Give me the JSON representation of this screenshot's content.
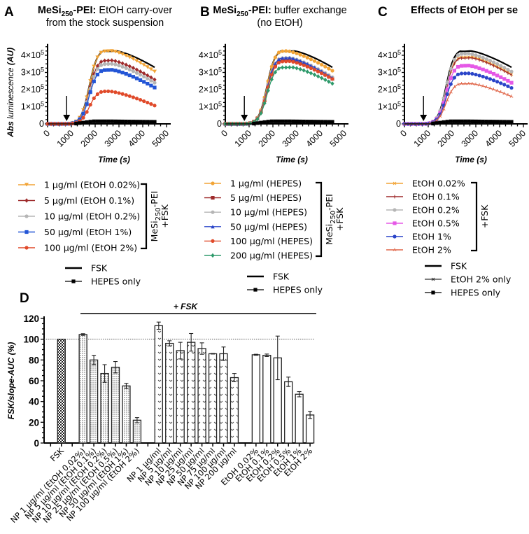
{
  "colors": {
    "orange": "#F2A436",
    "darkred": "#9E2A2B",
    "gray": "#B5B5B5",
    "blue": "#2355D6",
    "red": "#E04A2A",
    "green": "#2E9A6B",
    "magenta": "#E558E6",
    "navy": "#2A44C8",
    "salmon": "#E0674A",
    "black": "#000000"
  },
  "panels": [
    {
      "letter": "A",
      "title_bold": "MeSi",
      "title_sub": "250",
      "title_bold2": "-PEI:",
      "title_rest": " EtOH carry-over",
      "title_line2": "from the stock suspension"
    },
    {
      "letter": "B",
      "title_bold": "MeSi",
      "title_sub": "250",
      "title_bold2": "-PEI:",
      "title_rest": " buffer exchange",
      "title_line2": "(no EtOH)"
    },
    {
      "letter": "C",
      "title_bold": "Effects of EtOH per se",
      "title_sub": "",
      "title_bold2": "",
      "title_rest": "",
      "title_line2": ""
    }
  ],
  "legends": {
    "A": {
      "items": [
        "1 µg/ml (EtOH 0.02%)",
        "5 µg/ml (EtOH 0.1%)",
        "10 µg/ml (EtOH 0.2%)",
        "50 µg/ml (EtOH 1%)",
        "100 µg/ml (EtOH 2%)"
      ],
      "bracket_label_1": "MeSi",
      "bracket_label_sub": "250",
      "bracket_label_2": "-PEI",
      "bracket_label_3": "+FSK",
      "extra": [
        "FSK",
        "HEPES only"
      ]
    },
    "B": {
      "items": [
        "1 µg/ml (HEPES)",
        "5 µg/ml (HEPES)",
        "10 µg/ml (HEPES)",
        "50 µg/ml (HEPES)",
        "100 µg/ml (HEPES)",
        "200 µg/ml (HEPES)"
      ],
      "bracket_label_1": "MeSi",
      "bracket_label_sub": "250",
      "bracket_label_2": "-PEI",
      "bracket_label_3": "+FSK",
      "extra": [
        "FSK",
        "HEPES only"
      ]
    },
    "C": {
      "items": [
        "EtOH 0.02%",
        "EtOH 0.1%",
        "EtOH 0.2%",
        "EtOH 0.5%",
        "EtOH 1%",
        "EtOH 2%"
      ],
      "bracket_label_3": "+FSK",
      "extra": [
        "FSK",
        "EtOH 2% only",
        "HEPES only"
      ]
    }
  },
  "chart_data": [
    {
      "type": "line",
      "panel": "A",
      "title": "MeSi250-PEI: EtOH carry-over from the stock suspension",
      "xlabel": "Time (s)",
      "ylabel": "Abs luminescence (AU)",
      "xlim": [
        0,
        5000
      ],
      "ylim": [
        0,
        450000
      ],
      "xticks": [
        "0",
        "1000",
        "2000",
        "3000",
        "4000",
        "5000"
      ],
      "yticks": [
        "0",
        "1×10⁵",
        "2×10⁵",
        "3×10⁵",
        "4×10⁵"
      ],
      "annotation": "arrow at ~800 s (addition)",
      "series": [
        {
          "name": "FSK",
          "color": "#000000",
          "marker": "none",
          "peak": 425000,
          "peak_t": 2900,
          "end": 330000
        },
        {
          "name": "1 µg/ml (EtOH 0.02%)",
          "color": "#F2A436",
          "marker": "triangle-down",
          "peak": 425000,
          "peak_t": 2700,
          "end": 305000
        },
        {
          "name": "5 µg/ml (EtOH 0.1%)",
          "color": "#9E2A2B",
          "marker": "diamond",
          "peak": 370000,
          "peak_t": 2700,
          "end": 258000
        },
        {
          "name": "10 µg/ml (EtOH 0.2%)",
          "color": "#B5B5B5",
          "marker": "circle",
          "peak": 350000,
          "peak_t": 2700,
          "end": 240000
        },
        {
          "name": "50 µg/ml (EtOH 1%)",
          "color": "#2355D6",
          "marker": "square",
          "peak": 315000,
          "peak_t": 2700,
          "end": 212000
        },
        {
          "name": "100 µg/ml (EtOH 2%)",
          "color": "#E04A2A",
          "marker": "circle",
          "peak": 190000,
          "peak_t": 2600,
          "end": 107000
        },
        {
          "name": "HEPES only",
          "color": "#000000",
          "marker": "square",
          "peak": 15000,
          "peak_t": 2700,
          "end": 12000,
          "flat": true
        }
      ]
    },
    {
      "type": "line",
      "panel": "B",
      "title": "MeSi250-PEI: buffer exchange (no EtOH)",
      "xlabel": "Time (s)",
      "ylabel": "",
      "xlim": [
        0,
        5000
      ],
      "ylim": [
        0,
        450000
      ],
      "xticks": [
        "0",
        "1000",
        "2000",
        "3000",
        "4000",
        "5000"
      ],
      "yticks": [
        "0",
        "1×10⁵",
        "2×10⁵",
        "3×10⁵",
        "4×10⁵"
      ],
      "series": [
        {
          "name": "FSK",
          "color": "#000000",
          "marker": "none",
          "peak": 425000,
          "peak_t": 2900,
          "end": 330000
        },
        {
          "name": "1 µg/ml (HEPES)",
          "color": "#F2A436",
          "marker": "circle",
          "peak": 425000,
          "peak_t": 2600,
          "end": 310000
        },
        {
          "name": "5 µg/ml (HEPES)",
          "color": "#9E2A2B",
          "marker": "square",
          "peak": 375000,
          "peak_t": 2700,
          "end": 263000
        },
        {
          "name": "10 µg/ml (HEPES)",
          "color": "#B5B5B5",
          "marker": "circle",
          "peak": 385000,
          "peak_t": 2700,
          "end": 272000
        },
        {
          "name": "50 µg/ml (HEPES)",
          "color": "#2A44C8",
          "marker": "triangle-up",
          "peak": 385000,
          "peak_t": 2700,
          "end": 268000
        },
        {
          "name": "100 µg/ml (HEPES)",
          "color": "#E04A2A",
          "marker": "circle",
          "peak": 365000,
          "peak_t": 2700,
          "end": 262000
        },
        {
          "name": "200 µg/ml (HEPES)",
          "color": "#2E9A6B",
          "marker": "diamond",
          "peak": 330000,
          "peak_t": 2800,
          "end": 235000
        },
        {
          "name": "HEPES only",
          "color": "#000000",
          "marker": "square",
          "peak": 15000,
          "peak_t": 2700,
          "end": 12000,
          "flat": true
        }
      ]
    },
    {
      "type": "line",
      "panel": "C",
      "title": "Effects of EtOH per se",
      "xlabel": "Time (s)",
      "ylabel": "",
      "xlim": [
        0,
        5000
      ],
      "ylim": [
        0,
        450000
      ],
      "xticks": [
        "0",
        "1000",
        "2000",
        "3000",
        "4000",
        "5000"
      ],
      "yticks": [
        "0",
        "1×10⁵",
        "2×10⁵",
        "3×10⁵",
        "4×10⁵"
      ],
      "series": [
        {
          "name": "FSK",
          "color": "#000000",
          "marker": "none",
          "peak": 425000,
          "peak_t": 2800,
          "end": 330000
        },
        {
          "name": "EtOH 0.02%",
          "color": "#F2A436",
          "marker": "x",
          "peak": 390000,
          "peak_t": 2800,
          "end": 290000
        },
        {
          "name": "EtOH 0.1%",
          "color": "#9E2A2B",
          "marker": "plus",
          "peak": 385000,
          "peak_t": 2800,
          "end": 285000
        },
        {
          "name": "EtOH 0.2%",
          "color": "#B5B5B5",
          "marker": "circle",
          "peak": 410000,
          "peak_t": 2700,
          "end": 305000
        },
        {
          "name": "EtOH 0.5%",
          "color": "#E558E6",
          "marker": "square",
          "peak": 340000,
          "peak_t": 2700,
          "end": 240000
        },
        {
          "name": "EtOH 1%",
          "color": "#2A44C8",
          "marker": "circle",
          "peak": 295000,
          "peak_t": 2700,
          "end": 210000
        },
        {
          "name": "EtOH 2%",
          "color": "#E0674A",
          "marker": "tri",
          "peak": 235000,
          "peak_t": 2800,
          "end": 160000
        },
        {
          "name": "EtOH 2% only",
          "color": "#333333",
          "marker": "x",
          "peak": 12000,
          "peak_t": 2700,
          "end": 10000,
          "flat": true
        },
        {
          "name": "HEPES only",
          "color": "#000000",
          "marker": "square",
          "peak": 15000,
          "peak_t": 2700,
          "end": 12000,
          "flat": true
        }
      ]
    },
    {
      "type": "bar",
      "panel": "D",
      "title": "",
      "group_label": "+ FSK",
      "ylabel": "FSK/slope-AUC (%)",
      "ylim": [
        0,
        120
      ],
      "yticks": [
        "0",
        "20",
        "40",
        "60",
        "80",
        "100",
        "120"
      ],
      "reference_line": 100,
      "categories": [
        "FSK",
        "NP 1 µg/ml (EtOH 0.02%)",
        "NP 5 µg/ml (EtOH 0.1%)",
        "NP 10 µg/ml (EtOH 0.2%)",
        "NP 25 µg/ml (EtOH 0.5%)",
        "NP 50 µg/ml (EtOH 1%)",
        "NP 100 µg/ml (EtOH 2%)",
        "NP 1 µg/ml",
        "NP 5 µg/ml",
        "NP 10 µg/ml",
        "NP 25 µg/ml",
        "NP 50 µg/ml",
        "NP 75 µg/ml",
        "NP 100 µg/ml",
        "NP 200 µg/ml",
        "EtOH 0.02%",
        "EtOH 0.1%",
        "EtOH 0.2%",
        "EtOH 0.5%",
        "EtOH 1%",
        "EtOH 2%"
      ],
      "slots": [
        1,
        3,
        4,
        5,
        6,
        7,
        8,
        10,
        11,
        12,
        13,
        14,
        15,
        16,
        17,
        19,
        20,
        21,
        22,
        23,
        24
      ],
      "values": [
        100,
        104.5,
        80,
        67,
        73,
        55,
        22,
        113,
        96,
        89,
        97,
        91,
        86,
        86,
        63,
        85,
        84.5,
        82,
        59,
        47,
        27
      ],
      "errors": [
        0,
        0.8,
        4.5,
        8.5,
        5.5,
        2.5,
        2.5,
        3.5,
        2.5,
        8,
        8.5,
        5.5,
        0.3,
        6.5,
        4,
        0.5,
        1.2,
        21,
        4.5,
        2.5,
        3.5
      ],
      "patterns": [
        "checker",
        "dots",
        "dots",
        "dots",
        "dots",
        "dots",
        "dots",
        "hearts",
        "hearts",
        "hearts",
        "hearts",
        "hearts",
        "hearts",
        "hearts",
        "hearts",
        "none",
        "none",
        "none",
        "none",
        "none",
        "none"
      ]
    }
  ]
}
